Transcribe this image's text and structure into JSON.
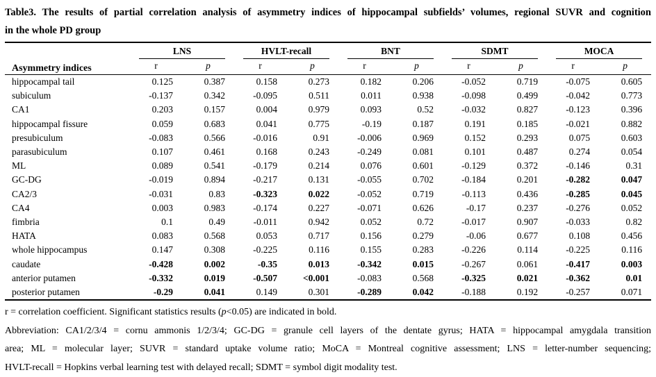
{
  "colors": {
    "text": "#000000",
    "background": "#ffffff",
    "rule": "#000000"
  },
  "title": {
    "line1": "Table3. The results of partial correlation analysis of asymmetry indices of hippocampal subfields’ volumes, regional SUVR and cognition",
    "line2": "in the whole PD group"
  },
  "table": {
    "row_header_label": "Asymmetry indices",
    "groups": [
      "LNS",
      "HVLT-recall",
      "BNT",
      "SDMT",
      "MOCA"
    ],
    "sub_r": "r",
    "sub_p": "p",
    "rows": [
      {
        "label": "hippocampal tail",
        "values": [
          "0.125",
          "0.387",
          "0.158",
          "0.273",
          "0.182",
          "0.206",
          "-0.052",
          "0.719",
          "-0.075",
          "0.605"
        ],
        "bold": []
      },
      {
        "label": "subiculum",
        "values": [
          "-0.137",
          "0.342",
          "-0.095",
          "0.511",
          "0.011",
          "0.938",
          "-0.098",
          "0.499",
          "-0.042",
          "0.773"
        ],
        "bold": []
      },
      {
        "label": "CA1",
        "values": [
          "0.203",
          "0.157",
          "0.004",
          "0.979",
          "0.093",
          "0.52",
          "-0.032",
          "0.827",
          "-0.123",
          "0.396"
        ],
        "bold": []
      },
      {
        "label": "hippocampal fissure",
        "values": [
          "0.059",
          "0.683",
          "0.041",
          "0.775",
          "-0.19",
          "0.187",
          "0.191",
          "0.185",
          "-0.021",
          "0.882"
        ],
        "bold": []
      },
      {
        "label": "presubiculum",
        "values": [
          "-0.083",
          "0.566",
          "-0.016",
          "0.91",
          "-0.006",
          "0.969",
          "0.152",
          "0.293",
          "0.075",
          "0.603"
        ],
        "bold": []
      },
      {
        "label": "parasubiculum",
        "values": [
          "0.107",
          "0.461",
          "0.168",
          "0.243",
          "-0.249",
          "0.081",
          "0.101",
          "0.487",
          "0.274",
          "0.054"
        ],
        "bold": []
      },
      {
        "label": "ML",
        "values": [
          "0.089",
          "0.541",
          "-0.179",
          "0.214",
          "0.076",
          "0.601",
          "-0.129",
          "0.372",
          "-0.146",
          "0.31"
        ],
        "bold": []
      },
      {
        "label": "GC-DG",
        "values": [
          "-0.019",
          "0.894",
          "-0.217",
          "0.131",
          "-0.055",
          "0.702",
          "-0.184",
          "0.201",
          "-0.282",
          "0.047"
        ],
        "bold": [
          8,
          9
        ]
      },
      {
        "label": "CA2/3",
        "values": [
          "-0.031",
          "0.83",
          "-0.323",
          "0.022",
          "-0.052",
          "0.719",
          "-0.113",
          "0.436",
          "-0.285",
          "0.045"
        ],
        "bold": [
          2,
          3,
          8,
          9
        ]
      },
      {
        "label": "CA4",
        "values": [
          "0.003",
          "0.983",
          "-0.174",
          "0.227",
          "-0.071",
          "0.626",
          "-0.17",
          "0.237",
          "-0.276",
          "0.052"
        ],
        "bold": []
      },
      {
        "label": "fimbria",
        "values": [
          "0.1",
          "0.49",
          "-0.011",
          "0.942",
          "0.052",
          "0.72",
          "-0.017",
          "0.907",
          "-0.033",
          "0.82"
        ],
        "bold": []
      },
      {
        "label": "HATA",
        "values": [
          "0.083",
          "0.568",
          "0.053",
          "0.717",
          "0.156",
          "0.279",
          "-0.06",
          "0.677",
          "0.108",
          "0.456"
        ],
        "bold": []
      },
      {
        "label": "whole hippocampus",
        "values": [
          "0.147",
          "0.308",
          "-0.225",
          "0.116",
          "0.155",
          "0.283",
          "-0.226",
          "0.114",
          "-0.225",
          "0.116"
        ],
        "bold": []
      },
      {
        "label": "caudate",
        "values": [
          "-0.428",
          "0.002",
          "-0.35",
          "0.013",
          "-0.342",
          "0.015",
          "-0.267",
          "0.061",
          "-0.417",
          "0.003"
        ],
        "bold": [
          0,
          1,
          2,
          3,
          4,
          5,
          8,
          9
        ]
      },
      {
        "label": "anterior putamen",
        "values": [
          "-0.332",
          "0.019",
          "-0.507",
          "<0.001",
          "-0.083",
          "0.568",
          "-0.325",
          "0.021",
          "-0.362",
          "0.01"
        ],
        "bold": [
          0,
          1,
          2,
          3,
          6,
          7,
          8,
          9
        ]
      },
      {
        "label": "posterior putamen",
        "values": [
          "-0.29",
          "0.041",
          "0.149",
          "0.301",
          "-0.289",
          "0.042",
          "-0.188",
          "0.192",
          "-0.257",
          "0.071"
        ],
        "bold": [
          0,
          1,
          4,
          5
        ]
      }
    ]
  },
  "footnotes": {
    "sig_pre": "r = correlation coefficient. Significant statistics results (",
    "sig_p": "p",
    "sig_post": "<0.05) are indicated in bold.",
    "abbr_line1": "Abbreviation: CA1/2/3/4 = cornu ammonis 1/2/3/4; GC-DG = granule cell layers of the dentate gyrus; HATA = hippocampal amygdala transition",
    "abbr_line2": "area; ML = molecular layer; SUVR = standard uptake volume ratio; MoCA = Montreal cognitive assessment; LNS = letter-number sequencing;",
    "abbr_line3": "HVLT-recall = Hopkins verbal learning test with delayed recall; SDMT = symbol digit modality test."
  }
}
